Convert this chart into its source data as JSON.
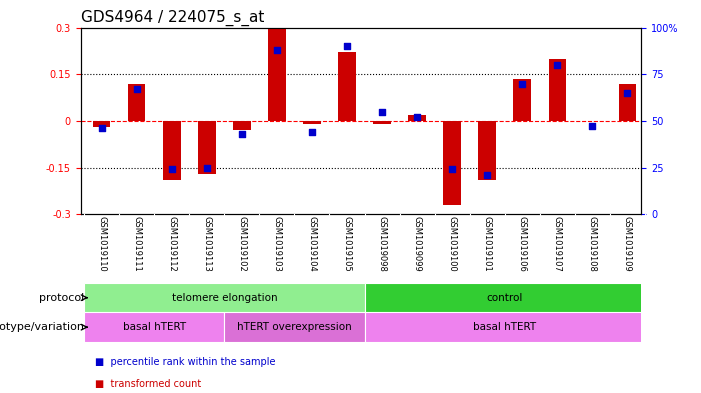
{
  "title": "GDS4964 / 224075_s_at",
  "samples": [
    "GSM1019110",
    "GSM1019111",
    "GSM1019112",
    "GSM1019113",
    "GSM1019102",
    "GSM1019103",
    "GSM1019104",
    "GSM1019105",
    "GSM1019098",
    "GSM1019099",
    "GSM1019100",
    "GSM1019101",
    "GSM1019106",
    "GSM1019107",
    "GSM1019108",
    "GSM1019109"
  ],
  "red_values": [
    -0.02,
    0.12,
    -0.19,
    -0.17,
    -0.03,
    0.295,
    -0.01,
    0.22,
    -0.01,
    0.02,
    -0.27,
    -0.19,
    0.135,
    0.2,
    0.0,
    0.12
  ],
  "blue_values": [
    46,
    67,
    24,
    25,
    43,
    88,
    44,
    90,
    55,
    52,
    24,
    21,
    70,
    80,
    47,
    65
  ],
  "ylim_left": [
    -0.3,
    0.3
  ],
  "ylim_right": [
    0,
    100
  ],
  "yticks_left": [
    -0.3,
    -0.15,
    0,
    0.15,
    0.3
  ],
  "yticks_right": [
    0,
    25,
    50,
    75,
    100
  ],
  "ytick_labels_left": [
    "-0.3",
    "-0.15",
    "0",
    "0.15",
    "0.3"
  ],
  "ytick_labels_right": [
    "0",
    "25",
    "50",
    "75",
    "100%"
  ],
  "hline_dotted": [
    -0.15,
    0.15
  ],
  "protocol_groups": [
    {
      "label": "telomere elongation",
      "start": 0,
      "end": 7,
      "color": "#90EE90"
    },
    {
      "label": "control",
      "start": 8,
      "end": 15,
      "color": "#32CD32"
    }
  ],
  "genotype_groups": [
    {
      "label": "basal hTERT",
      "start": 0,
      "end": 3,
      "color": "#EE82EE"
    },
    {
      "label": "hTERT overexpression",
      "start": 4,
      "end": 7,
      "color": "#DA70D6"
    },
    {
      "label": "basal hTERT",
      "start": 8,
      "end": 15,
      "color": "#EE82EE"
    }
  ],
  "bar_color": "#CC0000",
  "dot_color": "#0000CC",
  "bar_width": 0.5,
  "dot_size": 20,
  "legend_items": [
    {
      "color": "#CC0000",
      "label": "transformed count"
    },
    {
      "color": "#0000CC",
      "label": "percentile rank within the sample"
    }
  ],
  "title_fontsize": 11,
  "tick_fontsize": 7,
  "label_fontsize": 8,
  "sample_label_fontsize": 6,
  "gray_bg": "#d3d3d3",
  "xlim": [
    -0.6,
    15.4
  ]
}
